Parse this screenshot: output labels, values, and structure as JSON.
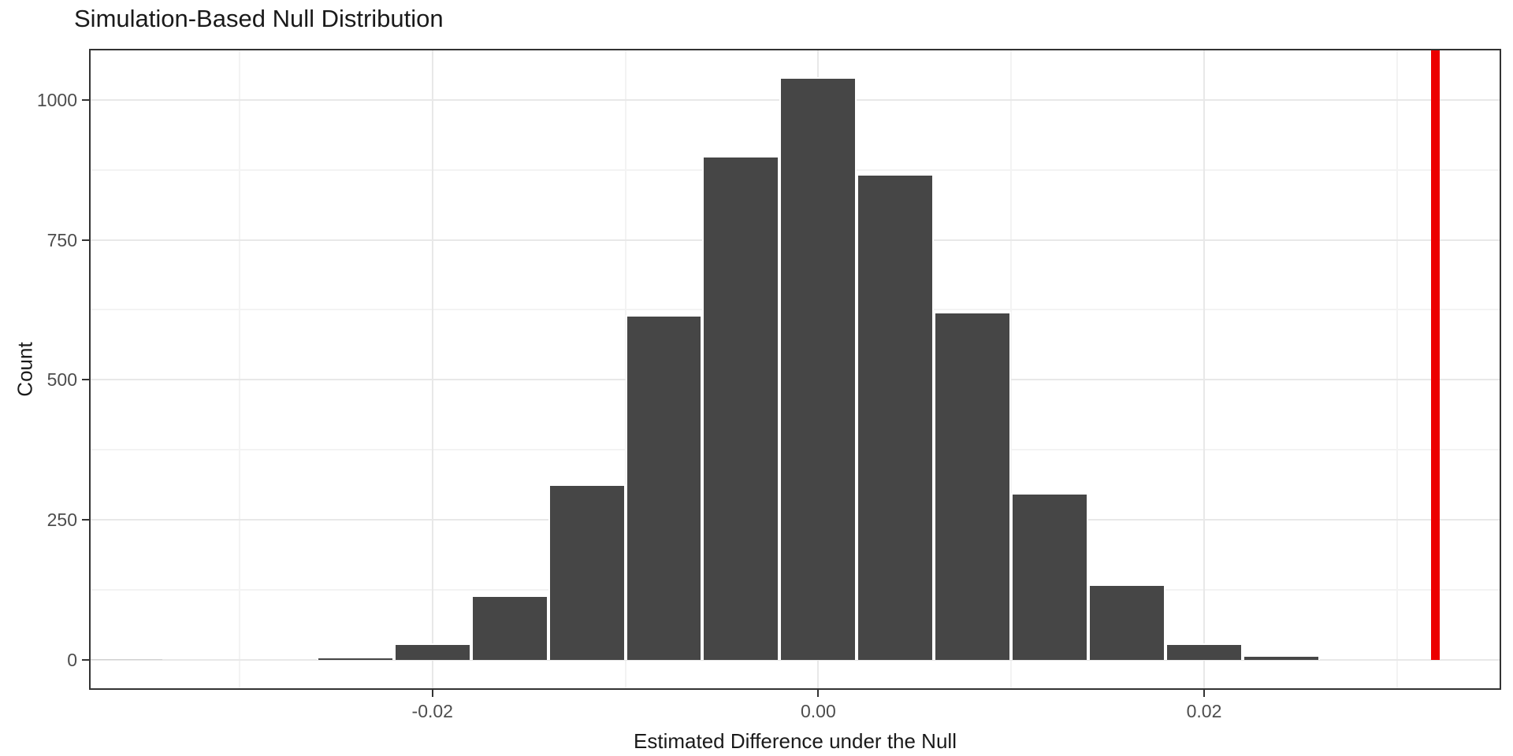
{
  "chart_data": {
    "type": "bar",
    "subtype": "histogram",
    "title": "Simulation-Based Null Distribution",
    "xlabel": "Estimated Difference under the Null",
    "ylabel": "Count",
    "bin_width": 0.004,
    "bin_centers": [
      -0.036,
      -0.032,
      -0.028,
      -0.024,
      -0.02,
      -0.016,
      -0.012,
      -0.008,
      -0.004,
      0.0,
      0.004,
      0.008,
      0.012,
      0.016,
      0.02,
      0.024
    ],
    "counts": [
      1,
      0,
      0,
      6,
      30,
      115,
      313,
      616,
      900,
      1040,
      868,
      622,
      298,
      135,
      30,
      8
    ],
    "observed_stat": 0.032,
    "x_ticks": {
      "values": [
        -0.02,
        0.0,
        0.02
      ],
      "labels": [
        "-0.02",
        "0.00",
        "0.02"
      ]
    },
    "x_minor": [
      -0.03,
      -0.01,
      0.01,
      0.03
    ],
    "y_ticks": {
      "values": [
        0,
        250,
        500,
        750,
        1000
      ],
      "labels": [
        "0",
        "250",
        "500",
        "750",
        "1000"
      ]
    },
    "y_minor": [
      125,
      375,
      625,
      875
    ],
    "xlim": [
      -0.0378,
      0.0354
    ],
    "ylim": [
      -53.5,
      1091
    ],
    "grid": true,
    "legend": false,
    "colors": {
      "bar_fill": "#464646",
      "bar_stroke": "#ffffff",
      "tiny_bar_fill": "#d0d0d0",
      "observed_line": "#ec0000",
      "panel_border": "#333333",
      "grid_major": "#e8e8e8",
      "grid_minor": "#f3f3f3",
      "tick_text": "#4d4d4d",
      "title_text": "#1a1a1a"
    }
  }
}
